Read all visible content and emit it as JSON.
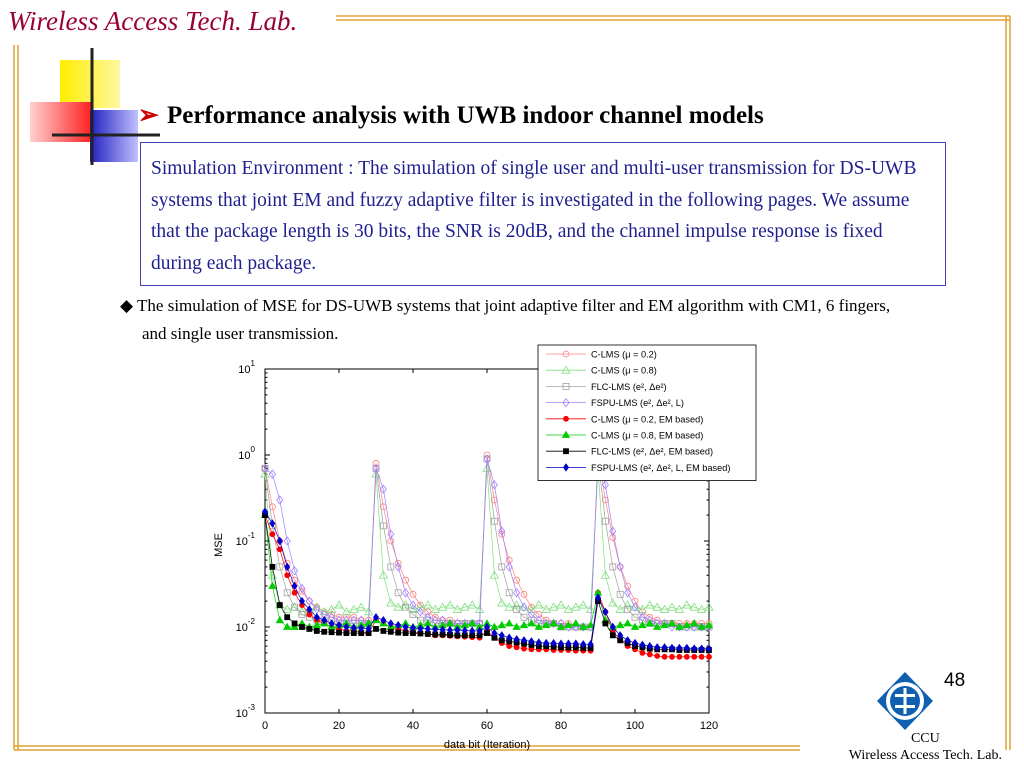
{
  "header": {
    "lab_title": "Wireless Access Tech. Lab."
  },
  "slide": {
    "heading_bullet": "➢",
    "heading": "Performance analysis with UWB indoor channel models",
    "sim_env": "Simulation Environment : The simulation of single user and multi-user transmission for DS-UWB systems that joint EM and fuzzy adaptive filter is investigated in the following pages. We assume that the package length is 30 bits, the SNR is 20dB, and the channel impulse response is fixed during each package.",
    "bullet_mark": "◆",
    "bullet_text": "The simulation of MSE for DS-UWB systems that joint adaptive filter and EM algorithm with CM1, 6 fingers, and single user transmission.",
    "page_number": "48",
    "footer_line1": "CCU",
    "footer_line2": "Wireless Access Tech. Lab."
  },
  "colors": {
    "accent": "#990033",
    "box_border": "#4040b0",
    "text_blue": "#1f1f8f"
  },
  "chart_data": {
    "type": "line",
    "xlabel": "data bit (Iteration)",
    "ylabel": "MSE",
    "xlim": [
      0,
      120
    ],
    "ylim": [
      0.001,
      10
    ],
    "yscale": "log",
    "xticks": [
      "0",
      "20",
      "40",
      "60",
      "80",
      "100",
      "120"
    ],
    "yticks": [
      {
        "base": "10",
        "exp": "1"
      },
      {
        "base": "10",
        "exp": "0"
      },
      {
        "base": "10",
        "exp": "-1"
      },
      {
        "base": "10",
        "exp": "-2"
      },
      {
        "base": "10",
        "exp": "-3"
      }
    ],
    "legend_position": "top-right",
    "series": [
      {
        "name": "C-LMS (μ = 0.2)",
        "color": "#ff8080",
        "marker": "circle",
        "filled": false,
        "x": [
          0,
          2,
          4,
          6,
          8,
          10,
          12,
          14,
          16,
          18,
          20,
          22,
          24,
          26,
          28,
          30,
          32,
          34,
          36,
          38,
          40,
          42,
          44,
          46,
          48,
          50,
          52,
          54,
          56,
          58,
          60,
          62,
          64,
          66,
          68,
          70,
          72,
          74,
          76,
          78,
          80,
          82,
          84,
          86,
          88,
          90,
          92,
          94,
          96,
          98,
          100,
          102,
          104,
          106,
          108,
          110,
          112,
          114,
          116,
          118,
          120
        ],
        "y": [
          0.7,
          0.25,
          0.1,
          0.055,
          0.035,
          0.026,
          0.02,
          0.017,
          0.015,
          0.014,
          0.013,
          0.013,
          0.013,
          0.012,
          0.012,
          0.8,
          0.25,
          0.1,
          0.055,
          0.035,
          0.024,
          0.018,
          0.015,
          0.013,
          0.012,
          0.012,
          0.011,
          0.011,
          0.011,
          0.011,
          1.0,
          0.3,
          0.12,
          0.06,
          0.035,
          0.024,
          0.017,
          0.014,
          0.012,
          0.011,
          0.011,
          0.011,
          0.01,
          0.01,
          0.01,
          1.0,
          0.3,
          0.11,
          0.05,
          0.03,
          0.02,
          0.015,
          0.013,
          0.012,
          0.011,
          0.011,
          0.011,
          0.011,
          0.011,
          0.011,
          0.011
        ]
      },
      {
        "name": "C-LMS (μ = 0.8)",
        "color": "#80e080",
        "marker": "triangle",
        "filled": false,
        "x": [
          0,
          2,
          4,
          6,
          8,
          10,
          12,
          14,
          16,
          18,
          20,
          22,
          24,
          26,
          28,
          30,
          32,
          34,
          36,
          38,
          40,
          42,
          44,
          46,
          48,
          50,
          52,
          54,
          56,
          58,
          60,
          62,
          64,
          66,
          68,
          70,
          72,
          74,
          76,
          78,
          80,
          82,
          84,
          86,
          88,
          90,
          92,
          94,
          96,
          98,
          100,
          102,
          104,
          106,
          108,
          110,
          112,
          114,
          116,
          118,
          120
        ],
        "y": [
          0.6,
          0.04,
          0.018,
          0.016,
          0.017,
          0.015,
          0.016,
          0.017,
          0.015,
          0.016,
          0.018,
          0.015,
          0.016,
          0.017,
          0.015,
          0.6,
          0.04,
          0.019,
          0.017,
          0.018,
          0.016,
          0.017,
          0.018,
          0.016,
          0.017,
          0.018,
          0.016,
          0.017,
          0.018,
          0.016,
          0.7,
          0.04,
          0.019,
          0.017,
          0.018,
          0.017,
          0.016,
          0.018,
          0.016,
          0.017,
          0.018,
          0.016,
          0.017,
          0.018,
          0.016,
          0.7,
          0.04,
          0.019,
          0.016,
          0.018,
          0.017,
          0.016,
          0.018,
          0.017,
          0.016,
          0.017,
          0.016,
          0.018,
          0.017,
          0.016,
          0.017
        ]
      },
      {
        "name": "FLC-LMS (e², Δe²)",
        "color": "#a0a0a0",
        "marker": "square",
        "filled": false,
        "x": [
          0,
          2,
          4,
          6,
          8,
          10,
          12,
          14,
          16,
          18,
          20,
          22,
          24,
          26,
          28,
          30,
          32,
          34,
          36,
          38,
          40,
          42,
          44,
          46,
          48,
          50,
          52,
          54,
          56,
          58,
          60,
          62,
          64,
          66,
          68,
          70,
          72,
          74,
          76,
          78,
          80,
          82,
          84,
          86,
          88,
          90,
          92,
          94,
          96,
          98,
          100,
          102,
          104,
          106,
          108,
          110,
          112,
          114,
          116,
          118,
          120
        ],
        "y": [
          0.7,
          0.15,
          0.05,
          0.025,
          0.017,
          0.014,
          0.013,
          0.012,
          0.012,
          0.012,
          0.011,
          0.011,
          0.011,
          0.011,
          0.011,
          0.7,
          0.15,
          0.05,
          0.025,
          0.017,
          0.014,
          0.012,
          0.012,
          0.011,
          0.011,
          0.011,
          0.011,
          0.011,
          0.011,
          0.011,
          0.9,
          0.17,
          0.05,
          0.025,
          0.016,
          0.013,
          0.012,
          0.011,
          0.011,
          0.011,
          0.01,
          0.01,
          0.01,
          0.01,
          0.01,
          0.9,
          0.17,
          0.05,
          0.024,
          0.016,
          0.013,
          0.012,
          0.011,
          0.011,
          0.011,
          0.011,
          0.01,
          0.01,
          0.01,
          0.01,
          0.01
        ]
      },
      {
        "name": "FSPU-LMS (e², Δe², L)",
        "color": "#a080ff",
        "marker": "diamond",
        "filled": false,
        "x": [
          0,
          2,
          4,
          6,
          8,
          10,
          12,
          14,
          16,
          18,
          20,
          22,
          24,
          26,
          28,
          30,
          32,
          34,
          36,
          38,
          40,
          42,
          44,
          46,
          48,
          50,
          52,
          54,
          56,
          58,
          60,
          62,
          64,
          66,
          68,
          70,
          72,
          74,
          76,
          78,
          80,
          82,
          84,
          86,
          88,
          90,
          92,
          94,
          96,
          98,
          100,
          102,
          104,
          106,
          108,
          110,
          112,
          114,
          116,
          118,
          120
        ],
        "y": [
          0.7,
          0.6,
          0.3,
          0.1,
          0.045,
          0.028,
          0.02,
          0.016,
          0.014,
          0.013,
          0.012,
          0.012,
          0.012,
          0.012,
          0.011,
          0.7,
          0.4,
          0.12,
          0.05,
          0.025,
          0.018,
          0.015,
          0.013,
          0.012,
          0.012,
          0.011,
          0.011,
          0.011,
          0.011,
          0.011,
          0.9,
          0.45,
          0.13,
          0.05,
          0.025,
          0.017,
          0.014,
          0.012,
          0.011,
          0.011,
          0.011,
          0.01,
          0.01,
          0.01,
          0.01,
          0.9,
          0.45,
          0.13,
          0.05,
          0.025,
          0.017,
          0.013,
          0.012,
          0.011,
          0.011,
          0.01,
          0.01,
          0.01,
          0.01,
          0.01,
          0.01
        ]
      },
      {
        "name": "C-LMS (μ = 0.2, EM based)",
        "color": "#ff0000",
        "marker": "circle",
        "filled": true,
        "x": [
          0,
          2,
          4,
          6,
          8,
          10,
          12,
          14,
          16,
          18,
          20,
          22,
          24,
          26,
          28,
          30,
          32,
          34,
          36,
          38,
          40,
          42,
          44,
          46,
          48,
          50,
          52,
          54,
          56,
          58,
          60,
          62,
          64,
          66,
          68,
          70,
          72,
          74,
          76,
          78,
          80,
          82,
          84,
          86,
          88,
          90,
          92,
          94,
          96,
          98,
          100,
          102,
          104,
          106,
          108,
          110,
          112,
          114,
          116,
          118,
          120
        ],
        "y": [
          0.2,
          0.12,
          0.08,
          0.04,
          0.025,
          0.018,
          0.014,
          0.012,
          0.011,
          0.01,
          0.0095,
          0.009,
          0.009,
          0.0088,
          0.0085,
          0.012,
          0.011,
          0.01,
          0.0095,
          0.009,
          0.0088,
          0.0085,
          0.0083,
          0.008,
          0.008,
          0.0079,
          0.0078,
          0.0077,
          0.0076,
          0.0075,
          0.009,
          0.0075,
          0.0065,
          0.006,
          0.0058,
          0.0056,
          0.0055,
          0.0055,
          0.0055,
          0.0054,
          0.0054,
          0.0054,
          0.0053,
          0.0053,
          0.0053,
          0.025,
          0.015,
          0.009,
          0.007,
          0.006,
          0.0055,
          0.005,
          0.0048,
          0.0046,
          0.0045,
          0.0045,
          0.0045,
          0.0045,
          0.0045,
          0.0045,
          0.0045
        ]
      },
      {
        "name": "C-LMS (μ = 0.8, EM based)",
        "color": "#00cc00",
        "marker": "triangle",
        "filled": true,
        "x": [
          0,
          2,
          4,
          6,
          8,
          10,
          12,
          14,
          16,
          18,
          20,
          22,
          24,
          26,
          28,
          30,
          32,
          34,
          36,
          38,
          40,
          42,
          44,
          46,
          48,
          50,
          52,
          54,
          56,
          58,
          60,
          62,
          64,
          66,
          68,
          70,
          72,
          74,
          76,
          78,
          80,
          82,
          84,
          86,
          88,
          90,
          92,
          94,
          96,
          98,
          100,
          102,
          104,
          106,
          108,
          110,
          112,
          114,
          116,
          118,
          120
        ],
        "y": [
          0.2,
          0.03,
          0.012,
          0.01,
          0.01,
          0.011,
          0.01,
          0.0105,
          0.011,
          0.01,
          0.0105,
          0.011,
          0.01,
          0.0105,
          0.011,
          0.012,
          0.011,
          0.01,
          0.0105,
          0.011,
          0.01,
          0.0105,
          0.011,
          0.01,
          0.0105,
          0.011,
          0.01,
          0.0105,
          0.011,
          0.01,
          0.011,
          0.01,
          0.0105,
          0.011,
          0.01,
          0.0105,
          0.011,
          0.01,
          0.0105,
          0.011,
          0.01,
          0.0105,
          0.011,
          0.01,
          0.0105,
          0.025,
          0.012,
          0.01,
          0.0105,
          0.011,
          0.01,
          0.0105,
          0.011,
          0.01,
          0.0105,
          0.011,
          0.01,
          0.0105,
          0.011,
          0.01,
          0.0105
        ]
      },
      {
        "name": "FLC-LMS (e², Δe², EM based)",
        "color": "#000000",
        "marker": "square",
        "filled": true,
        "x": [
          0,
          2,
          4,
          6,
          8,
          10,
          12,
          14,
          16,
          18,
          20,
          22,
          24,
          26,
          28,
          30,
          32,
          34,
          36,
          38,
          40,
          42,
          44,
          46,
          48,
          50,
          52,
          54,
          56,
          58,
          60,
          62,
          64,
          66,
          68,
          70,
          72,
          74,
          76,
          78,
          80,
          82,
          84,
          86,
          88,
          90,
          92,
          94,
          96,
          98,
          100,
          102,
          104,
          106,
          108,
          110,
          112,
          114,
          116,
          118,
          120
        ],
        "y": [
          0.2,
          0.05,
          0.018,
          0.013,
          0.011,
          0.01,
          0.0095,
          0.009,
          0.0088,
          0.0087,
          0.0086,
          0.0085,
          0.0085,
          0.0085,
          0.0085,
          0.0095,
          0.009,
          0.0088,
          0.0086,
          0.0085,
          0.0085,
          0.0084,
          0.0083,
          0.0082,
          0.0082,
          0.0081,
          0.008,
          0.008,
          0.008,
          0.008,
          0.0085,
          0.0075,
          0.007,
          0.0068,
          0.0066,
          0.0064,
          0.0062,
          0.006,
          0.006,
          0.0059,
          0.0058,
          0.0058,
          0.0058,
          0.0057,
          0.0057,
          0.02,
          0.011,
          0.008,
          0.007,
          0.0065,
          0.006,
          0.0058,
          0.0056,
          0.0055,
          0.0055,
          0.0055,
          0.0054,
          0.0054,
          0.0054,
          0.0054,
          0.0054
        ]
      },
      {
        "name": "FSPU-LMS (e², Δe², L, EM based)",
        "color": "#0000cc",
        "marker": "diamond",
        "filled": true,
        "x": [
          0,
          2,
          4,
          6,
          8,
          10,
          12,
          14,
          16,
          18,
          20,
          22,
          24,
          26,
          28,
          30,
          32,
          34,
          36,
          38,
          40,
          42,
          44,
          46,
          48,
          50,
          52,
          54,
          56,
          58,
          60,
          62,
          64,
          66,
          68,
          70,
          72,
          74,
          76,
          78,
          80,
          82,
          84,
          86,
          88,
          90,
          92,
          94,
          96,
          98,
          100,
          102,
          104,
          106,
          108,
          110,
          112,
          114,
          116,
          118,
          120
        ],
        "y": [
          0.22,
          0.16,
          0.1,
          0.05,
          0.03,
          0.02,
          0.016,
          0.013,
          0.012,
          0.011,
          0.0105,
          0.01,
          0.0098,
          0.0097,
          0.0096,
          0.013,
          0.012,
          0.011,
          0.0105,
          0.01,
          0.0098,
          0.0096,
          0.0095,
          0.0094,
          0.0093,
          0.0092,
          0.0092,
          0.0091,
          0.009,
          0.009,
          0.01,
          0.0085,
          0.008,
          0.0075,
          0.0072,
          0.007,
          0.0068,
          0.0066,
          0.0065,
          0.0065,
          0.0064,
          0.0064,
          0.0064,
          0.0063,
          0.0063,
          0.022,
          0.015,
          0.01,
          0.008,
          0.007,
          0.0065,
          0.0062,
          0.006,
          0.0058,
          0.0058,
          0.0057,
          0.0057,
          0.0057,
          0.0056,
          0.0056,
          0.0056
        ]
      }
    ]
  }
}
